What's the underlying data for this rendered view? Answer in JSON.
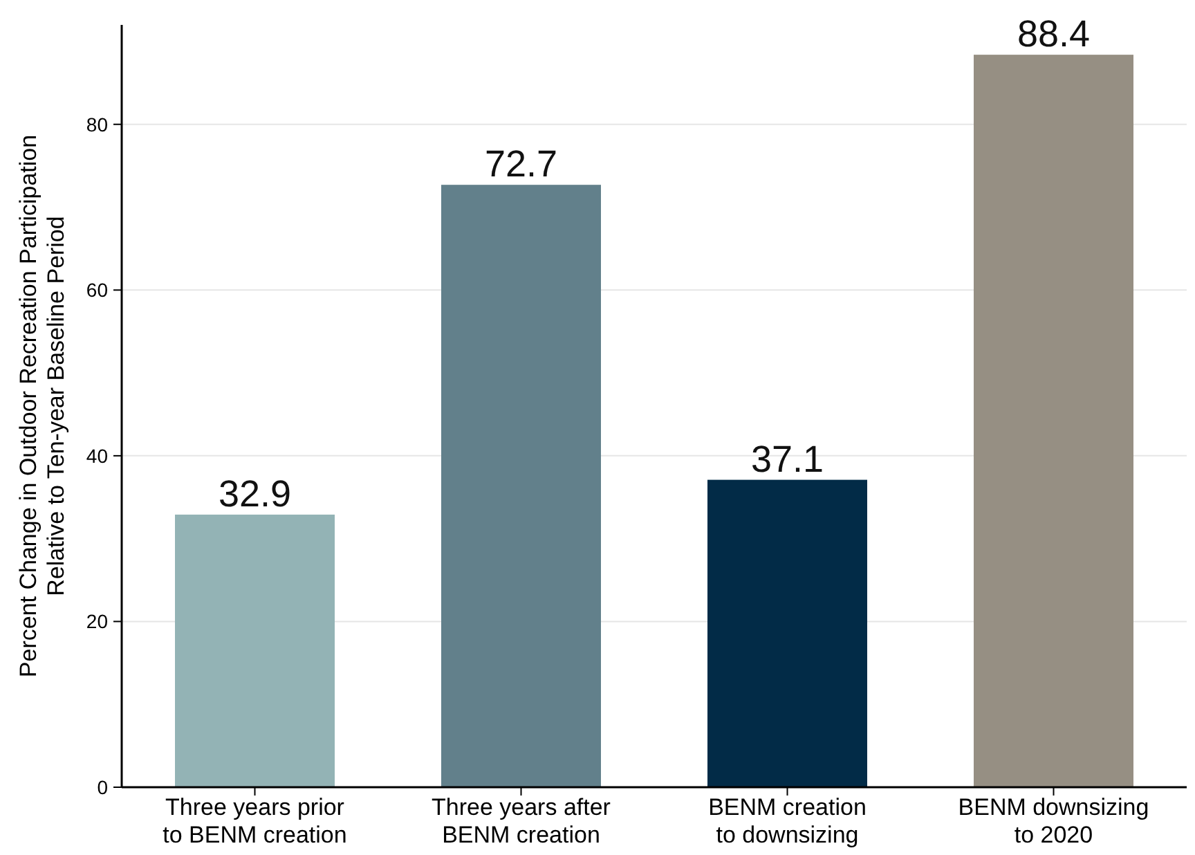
{
  "chart_data": {
    "type": "bar",
    "ylabel": "Percent Change in Outdoor Recreation Participation\nRelative to Ten-year Baseline Period",
    "categories": [
      "Three years prior\nto BENM creation",
      "Three years after\nBENM creation",
      "BENM creation\nto downsizing",
      "BENM downsizing\nto 2020"
    ],
    "values": [
      32.9,
      72.7,
      37.1,
      88.4
    ],
    "colors": [
      "#93b3b5",
      "#62808b",
      "#022b47",
      "#968f83"
    ],
    "ylim": [
      0,
      92
    ],
    "yticks": [
      0,
      20,
      40,
      60,
      80
    ],
    "grid": "y",
    "data_labels": true
  }
}
